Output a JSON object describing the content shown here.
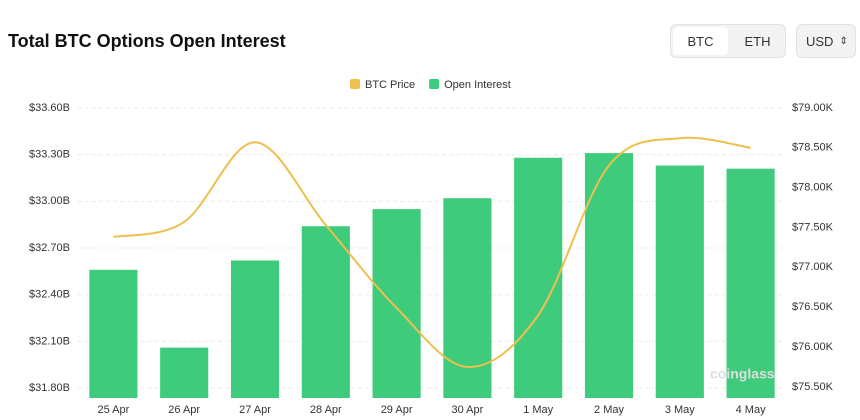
{
  "chart_data": {
    "type": "combo",
    "title": "Total BTC Options Open Interest",
    "categories": [
      "25 Apr",
      "26 Apr",
      "27 Apr",
      "28 Apr",
      "29 Apr",
      "30 Apr",
      "1 May",
      "2 May",
      "3 May",
      "4 May"
    ],
    "series": [
      {
        "name": "BTC Price",
        "color": "#edc04f",
        "type": "line",
        "axis": "y2",
        "values": [
          77.38,
          77.57,
          78.57,
          77.53,
          76.49,
          75.75,
          76.4,
          78.28,
          78.62,
          78.5
        ]
      },
      {
        "name": "Open Interest",
        "color": "#3ecb7b",
        "type": "bar",
        "values": [
          32.56,
          32.06,
          32.62,
          32.84,
          32.95,
          33.02,
          33.28,
          33.31,
          33.23,
          33.21
        ]
      }
    ],
    "ylim": [
      31.736,
      33.677
    ],
    "yticks": [
      {
        "value": 31.8,
        "label": "$31.80B"
      },
      {
        "value": 32.1,
        "label": "$32.10B"
      },
      {
        "value": 32.4,
        "label": "$32.40B"
      },
      {
        "value": 32.7,
        "label": "$32.70B"
      },
      {
        "value": 33.0,
        "label": "$33.00B"
      },
      {
        "value": 33.3,
        "label": "$33.30B"
      },
      {
        "value": 33.6,
        "label": "$33.60B"
      }
    ],
    "y2lim": [
      75.36,
      79.15
    ],
    "y2ticks": [
      {
        "value": 75.5,
        "label": "$75.50K"
      },
      {
        "value": 76.0,
        "label": "$76.00K"
      },
      {
        "value": 76.5,
        "label": "$76.50K"
      },
      {
        "value": 77.0,
        "label": "$77.00K"
      },
      {
        "value": 77.5,
        "label": "$77.50K"
      },
      {
        "value": 78.0,
        "label": "$78.00K"
      },
      {
        "value": 78.5,
        "label": "$78.50K"
      },
      {
        "value": 79.0,
        "label": "$79.00K"
      }
    ],
    "grid": true
  },
  "ui": {
    "tabs": [
      "BTC",
      "ETH"
    ],
    "currency": "USD",
    "watermark": "coinglass"
  }
}
